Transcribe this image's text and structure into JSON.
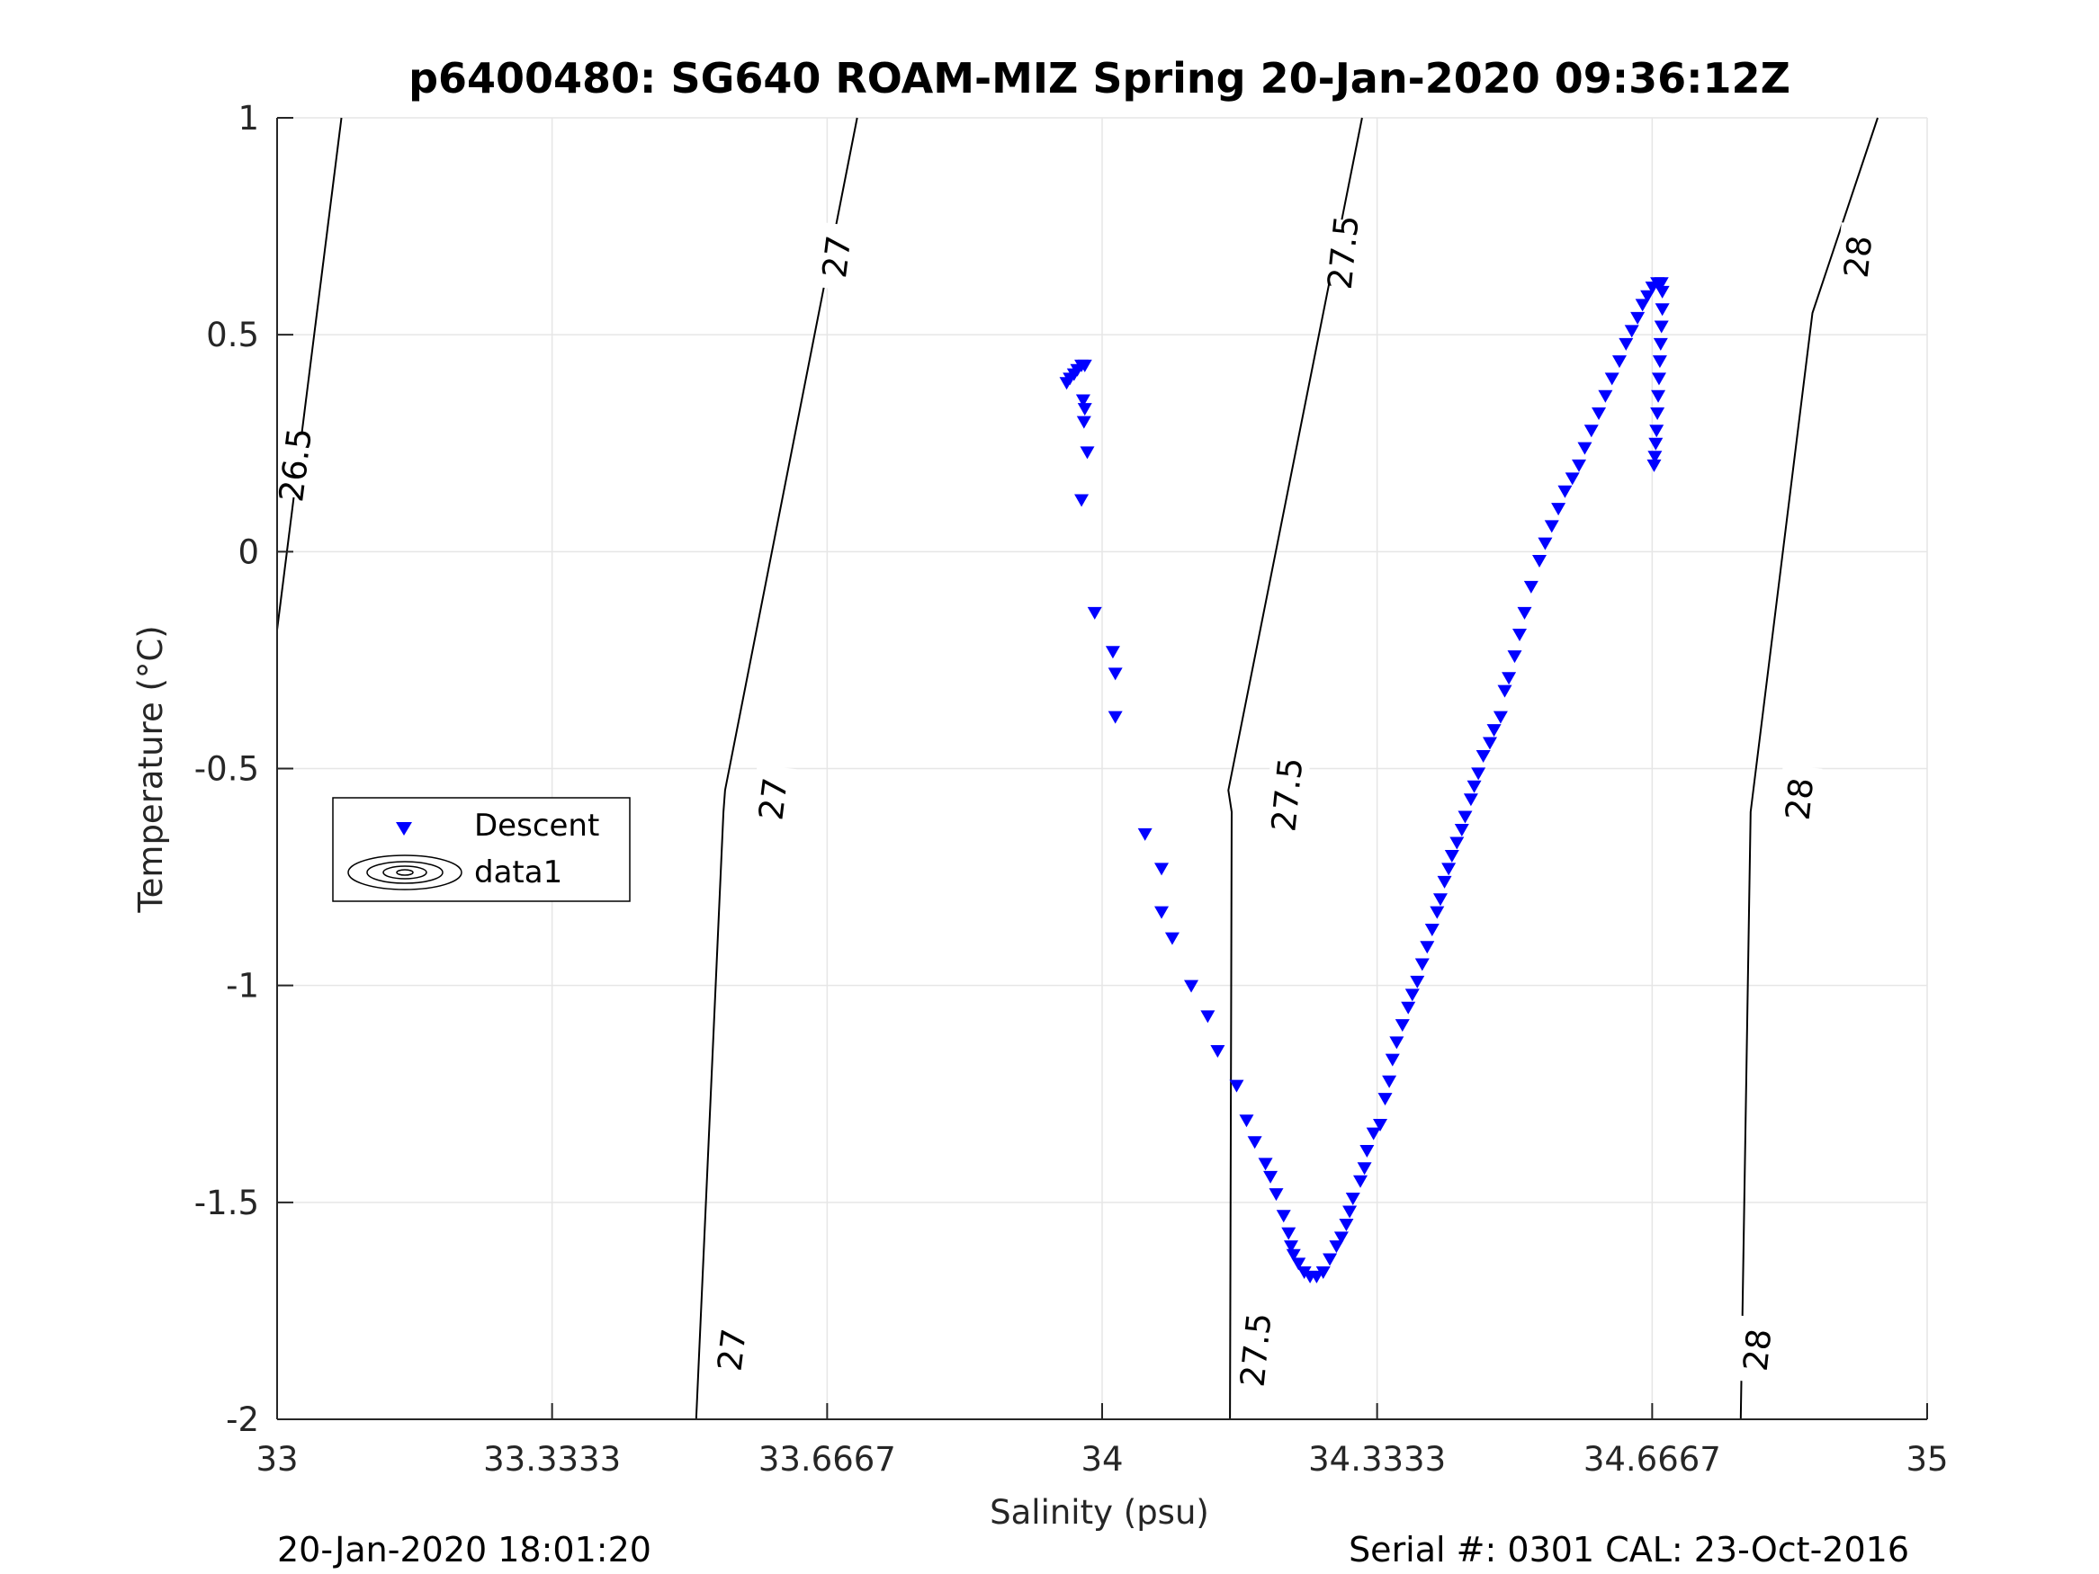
{
  "chart_data": {
    "type": "scatter",
    "title": "p6400480: SG640 ROAM-MIZ Spring 20-Jan-2020 09:36:12Z",
    "xlabel": "Salinity (psu)",
    "ylabel": "Temperature (°C)",
    "xlim": [
      33,
      35
    ],
    "ylim": [
      -2,
      1
    ],
    "grid": true,
    "x_ticks": [
      33,
      33.3333,
      33.6667,
      34,
      34.3333,
      34.6667,
      35
    ],
    "x_tick_labels": [
      "33",
      "33.3333",
      "33.6667",
      "34",
      "34.3333",
      "34.6667",
      "35"
    ],
    "y_ticks": [
      1,
      0.5,
      0,
      -0.5,
      -1,
      -1.5,
      -2
    ],
    "y_tick_labels": [
      "1",
      "0.5",
      "0",
      "-0.5",
      "-1",
      "-1.5",
      "-2"
    ],
    "legend": {
      "location": "left",
      "entries": [
        "Descent",
        "data1"
      ]
    },
    "density_contours": [
      {
        "level_label": "26.5",
        "points": [
          [
            33.078,
            1.0
          ],
          [
            33.0,
            -0.18
          ]
        ],
        "labels_at": [
          [
            33.022,
            0.2
          ]
        ]
      },
      {
        "level_label": "27",
        "points": [
          [
            33.703,
            1.0
          ],
          [
            33.543,
            -0.55
          ],
          [
            33.541,
            -0.6
          ],
          [
            33.508,
            -2.0
          ]
        ],
        "labels_at": [
          [
            33.678,
            0.68
          ],
          [
            33.601,
            -0.57
          ],
          [
            33.551,
            -1.84
          ]
        ]
      },
      {
        "level_label": "27.5",
        "points": [
          [
            34.315,
            1.0
          ],
          [
            34.153,
            -0.55
          ],
          [
            34.157,
            -0.6
          ],
          [
            34.155,
            -2.0
          ]
        ],
        "labels_at": [
          [
            34.292,
            0.69
          ],
          [
            34.224,
            -0.56
          ],
          [
            34.186,
            -1.84
          ]
        ]
      },
      {
        "level_label": "28",
        "points": [
          [
            34.94,
            1.0
          ],
          [
            34.861,
            0.55
          ],
          [
            34.786,
            -0.6
          ],
          [
            34.774,
            -2.0
          ]
        ],
        "labels_at": [
          [
            34.916,
            0.68
          ],
          [
            34.845,
            -0.57
          ],
          [
            34.794,
            -1.84
          ]
        ]
      }
    ],
    "series": [
      {
        "name": "Descent",
        "marker": "triangle-down",
        "color": "#0000ff",
        "points": [
          [
            33.957,
            0.39
          ],
          [
            33.961,
            0.4
          ],
          [
            33.966,
            0.41
          ],
          [
            33.97,
            0.42
          ],
          [
            33.975,
            0.43
          ],
          [
            33.979,
            0.43
          ],
          [
            33.977,
            0.35
          ],
          [
            33.979,
            0.33
          ],
          [
            33.978,
            0.3
          ],
          [
            33.982,
            0.23
          ],
          [
            33.975,
            0.12
          ],
          [
            33.991,
            -0.14
          ],
          [
            34.013,
            -0.23
          ],
          [
            34.016,
            -0.28
          ],
          [
            34.016,
            -0.38
          ],
          [
            34.052,
            -0.65
          ],
          [
            34.072,
            -0.73
          ],
          [
            34.072,
            -0.83
          ],
          [
            34.085,
            -0.89
          ],
          [
            34.108,
            -1.0
          ],
          [
            34.128,
            -1.07
          ],
          [
            34.14,
            -1.15
          ],
          [
            34.163,
            -1.23
          ],
          [
            34.175,
            -1.31
          ],
          [
            34.185,
            -1.36
          ],
          [
            34.198,
            -1.41
          ],
          [
            34.204,
            -1.44
          ],
          [
            34.211,
            -1.48
          ],
          [
            34.22,
            -1.53
          ],
          [
            34.226,
            -1.57
          ],
          [
            34.229,
            -1.6
          ],
          [
            34.232,
            -1.62
          ],
          [
            34.238,
            -1.64
          ],
          [
            34.245,
            -1.66
          ],
          [
            34.252,
            -1.67
          ],
          [
            34.26,
            -1.67
          ],
          [
            34.268,
            -1.66
          ],
          [
            34.276,
            -1.63
          ],
          [
            34.284,
            -1.6
          ],
          [
            34.29,
            -1.58
          ],
          [
            34.296,
            -1.55
          ],
          [
            34.3,
            -1.52
          ],
          [
            34.304,
            -1.49
          ],
          [
            34.313,
            -1.45
          ],
          [
            34.318,
            -1.42
          ],
          [
            34.321,
            -1.38
          ],
          [
            34.329,
            -1.34
          ],
          [
            34.337,
            -1.32
          ],
          [
            34.343,
            -1.26
          ],
          [
            34.348,
            -1.22
          ],
          [
            34.352,
            -1.17
          ],
          [
            34.357,
            -1.13
          ],
          [
            34.364,
            -1.09
          ],
          [
            34.371,
            -1.05
          ],
          [
            34.376,
            -1.02
          ],
          [
            34.382,
            -0.99
          ],
          [
            34.388,
            -0.95
          ],
          [
            34.394,
            -0.91
          ],
          [
            34.4,
            -0.87
          ],
          [
            34.406,
            -0.83
          ],
          [
            34.41,
            -0.8
          ],
          [
            34.415,
            -0.76
          ],
          [
            34.42,
            -0.73
          ],
          [
            34.424,
            -0.7
          ],
          [
            34.43,
            -0.67
          ],
          [
            34.436,
            -0.64
          ],
          [
            34.44,
            -0.61
          ],
          [
            34.447,
            -0.57
          ],
          [
            34.451,
            -0.54
          ],
          [
            34.456,
            -0.51
          ],
          [
            34.462,
            -0.47
          ],
          [
            34.47,
            -0.44
          ],
          [
            34.475,
            -0.41
          ],
          [
            34.483,
            -0.38
          ],
          [
            34.488,
            -0.32
          ],
          [
            34.493,
            -0.29
          ],
          [
            34.5,
            -0.24
          ],
          [
            34.506,
            -0.19
          ],
          [
            34.512,
            -0.14
          ],
          [
            34.52,
            -0.08
          ],
          [
            34.53,
            -0.02
          ],
          [
            34.537,
            0.02
          ],
          [
            34.545,
            0.06
          ],
          [
            34.553,
            0.1
          ],
          [
            34.561,
            0.14
          ],
          [
            34.57,
            0.17
          ],
          [
            34.578,
            0.2
          ],
          [
            34.585,
            0.24
          ],
          [
            34.593,
            0.28
          ],
          [
            34.602,
            0.32
          ],
          [
            34.61,
            0.36
          ],
          [
            34.618,
            0.4
          ],
          [
            34.627,
            0.44
          ],
          [
            34.635,
            0.48
          ],
          [
            34.642,
            0.51
          ],
          [
            34.649,
            0.54
          ],
          [
            34.655,
            0.57
          ],
          [
            34.661,
            0.59
          ],
          [
            34.667,
            0.61
          ],
          [
            34.673,
            0.62
          ],
          [
            34.678,
            0.62
          ],
          [
            34.679,
            0.6
          ],
          [
            34.679,
            0.56
          ],
          [
            34.678,
            0.52
          ],
          [
            34.677,
            0.48
          ],
          [
            34.676,
            0.44
          ],
          [
            34.675,
            0.4
          ],
          [
            34.674,
            0.36
          ],
          [
            34.673,
            0.32
          ],
          [
            34.672,
            0.28
          ],
          [
            34.671,
            0.25
          ],
          [
            34.67,
            0.22
          ],
          [
            34.669,
            0.2
          ]
        ]
      }
    ]
  },
  "footer": {
    "left": "20-Jan-2020 18:01:20",
    "right": "Serial #: 0301  CAL: 23-Oct-2016"
  }
}
